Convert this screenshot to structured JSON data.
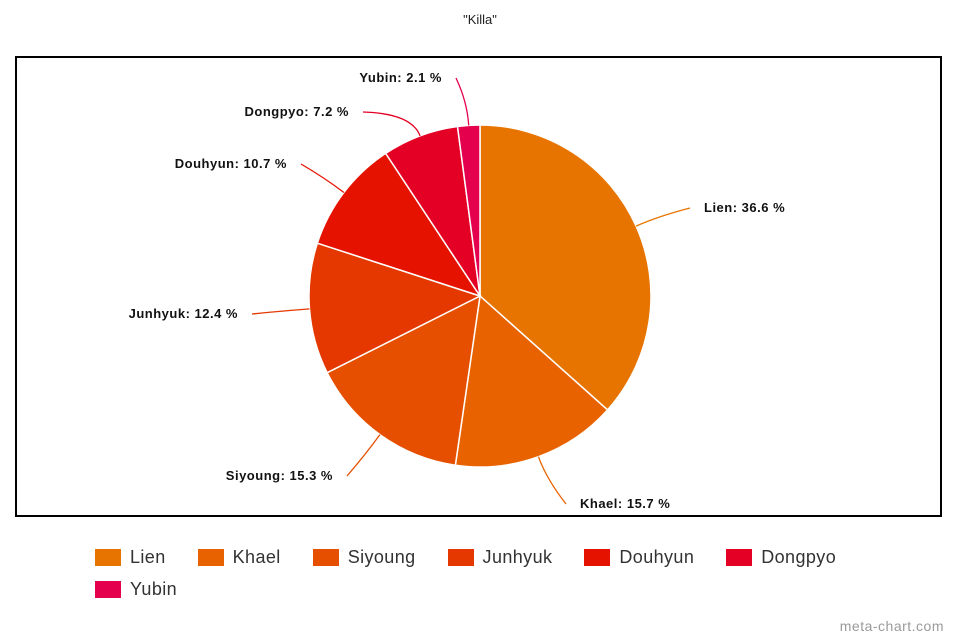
{
  "chart_data": {
    "type": "pie",
    "title": "\"Killa\"",
    "categories": [
      "Lien",
      "Khael",
      "Siyoung",
      "Junhyuk",
      "Douhyun",
      "Dongpyo",
      "Yubin"
    ],
    "values": [
      36.6,
      15.7,
      15.3,
      12.4,
      10.7,
      7.2,
      2.1
    ],
    "data_labels": [
      "Lien: 36.6 %",
      "Khael: 15.7 %",
      "Siyoung: 15.3 %",
      "Junhyuk: 12.4 %",
      "Douhyun: 10.7 %",
      "Dongpyo: 7.2 %",
      "Yubin: 2.1 %"
    ],
    "colors": [
      "#E87400",
      "#E96200",
      "#E64F00",
      "#E43800",
      "#E51200",
      "#E40024",
      "#E4004C"
    ],
    "legend_position": "bottom"
  },
  "watermark": "meta-chart.com"
}
